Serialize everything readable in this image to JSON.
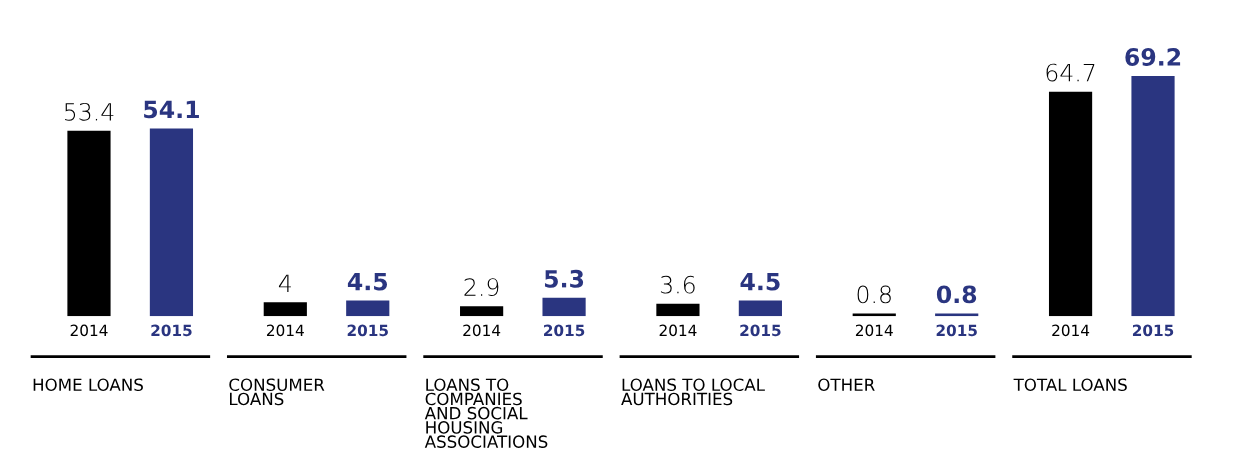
{
  "chart_data": {
    "type": "bar",
    "categories": [
      "HOME LOANS",
      "CONSUMER\nLOANS",
      "LOANS TO\nCOMPANIES\nAND SOCIAL\nHOUSING\nASSOCIATIONS",
      "LOANS TO LOCAL\nAUTHORITIES",
      "OTHER",
      "TOTAL LOANS"
    ],
    "series": [
      {
        "name": "2014",
        "color": "#000000",
        "values": [
          53.4,
          4,
          2.9,
          3.6,
          0.8,
          64.7
        ]
      },
      {
        "name": "2015",
        "color": "#2a3580",
        "values": [
          54.1,
          4.5,
          5.3,
          4.5,
          0.8,
          69.2
        ]
      }
    ],
    "data_labels": true,
    "legend": false
  }
}
